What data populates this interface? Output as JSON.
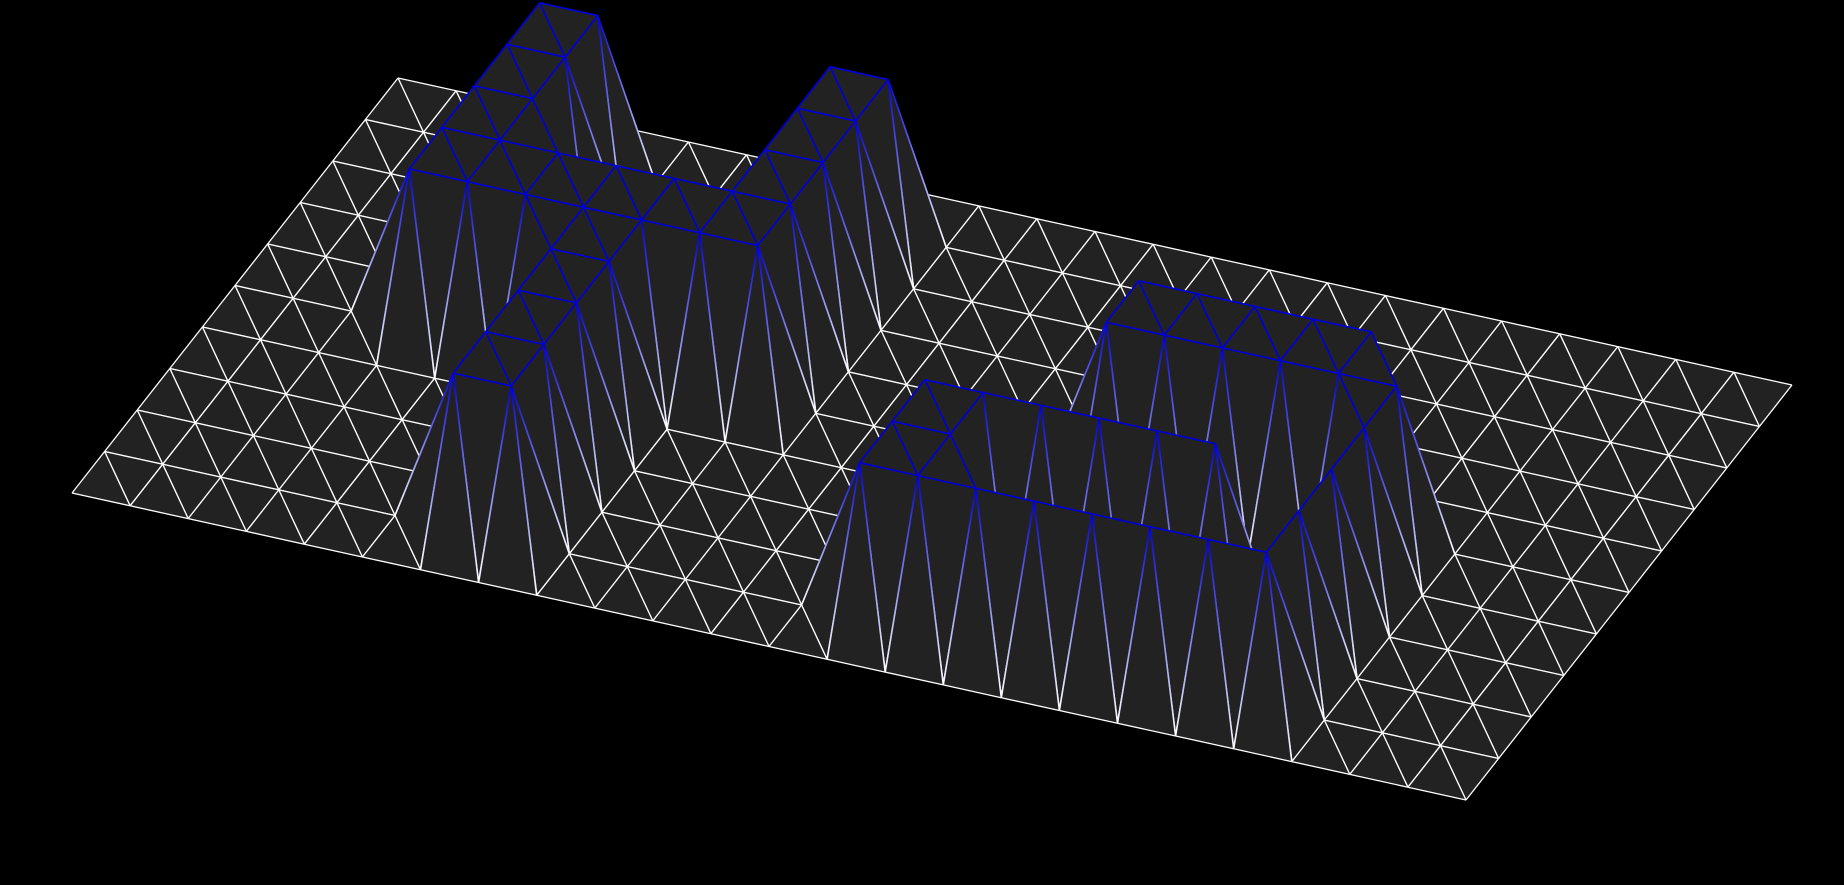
{
  "scene": {
    "background_color": "#000000",
    "surface_fill_color": "#222222",
    "wire_low_color": "#ffffff",
    "wire_high_color": "#0000d8"
  },
  "terrain": {
    "grid_columns": 24,
    "grid_rows": 10,
    "heightmap": [
      [
        0,
        0,
        0,
        0,
        0,
        0,
        0,
        0,
        0,
        0,
        0,
        0,
        0,
        0,
        0,
        0,
        0,
        0,
        0,
        0,
        0,
        0,
        0,
        0,
        0
      ],
      [
        0,
        0,
        0,
        1,
        1,
        0,
        0,
        0,
        1,
        1,
        0,
        0,
        0,
        0,
        0,
        0,
        0,
        0,
        0,
        0,
        0,
        0,
        0,
        0,
        0
      ],
      [
        0,
        0,
        0,
        1,
        1,
        0,
        0,
        0,
        1,
        1,
        0,
        0,
        0,
        0,
        0,
        0,
        0,
        0,
        0,
        0,
        0,
        0,
        0,
        0,
        0
      ],
      [
        0,
        0,
        0,
        1,
        1,
        0,
        0,
        0,
        1,
        1,
        0,
        0,
        0,
        0,
        0,
        0,
        0,
        0,
        0,
        0,
        0,
        0,
        0,
        0,
        0
      ],
      [
        0,
        0,
        0,
        1,
        1,
        1,
        1,
        1,
        1,
        1,
        0,
        0,
        0,
        0,
        0,
        1,
        1,
        1,
        1,
        1,
        0,
        0,
        0,
        0,
        0
      ],
      [
        0,
        0,
        0,
        1,
        1,
        1,
        1,
        1,
        1,
        1,
        0,
        0,
        0,
        0,
        0,
        1,
        1,
        1,
        1,
        1,
        1,
        0,
        0,
        0,
        0
      ],
      [
        0,
        0,
        0,
        0,
        0,
        0,
        1,
        1,
        0,
        0,
        0,
        0,
        0,
        0,
        0,
        0,
        0,
        0,
        0,
        0,
        1,
        0,
        0,
        0,
        0
      ],
      [
        0,
        0,
        0,
        0,
        0,
        0,
        1,
        1,
        0,
        0,
        0,
        0,
        0,
        1,
        1,
        1,
        1,
        1,
        1,
        0,
        1,
        0,
        0,
        0,
        0
      ],
      [
        0,
        0,
        0,
        0,
        0,
        0,
        1,
        1,
        0,
        0,
        0,
        0,
        0,
        1,
        1,
        0,
        0,
        0,
        0,
        0,
        1,
        0,
        0,
        0,
        0
      ],
      [
        0,
        0,
        0,
        0,
        0,
        0,
        1,
        1,
        0,
        0,
        0,
        0,
        0,
        1,
        1,
        1,
        1,
        1,
        1,
        1,
        1,
        0,
        0,
        0,
        0
      ],
      [
        0,
        0,
        0,
        0,
        0,
        0,
        0,
        0,
        0,
        0,
        0,
        0,
        0,
        0,
        0,
        0,
        0,
        0,
        0,
        0,
        0,
        0,
        0,
        0,
        0
      ]
    ]
  }
}
